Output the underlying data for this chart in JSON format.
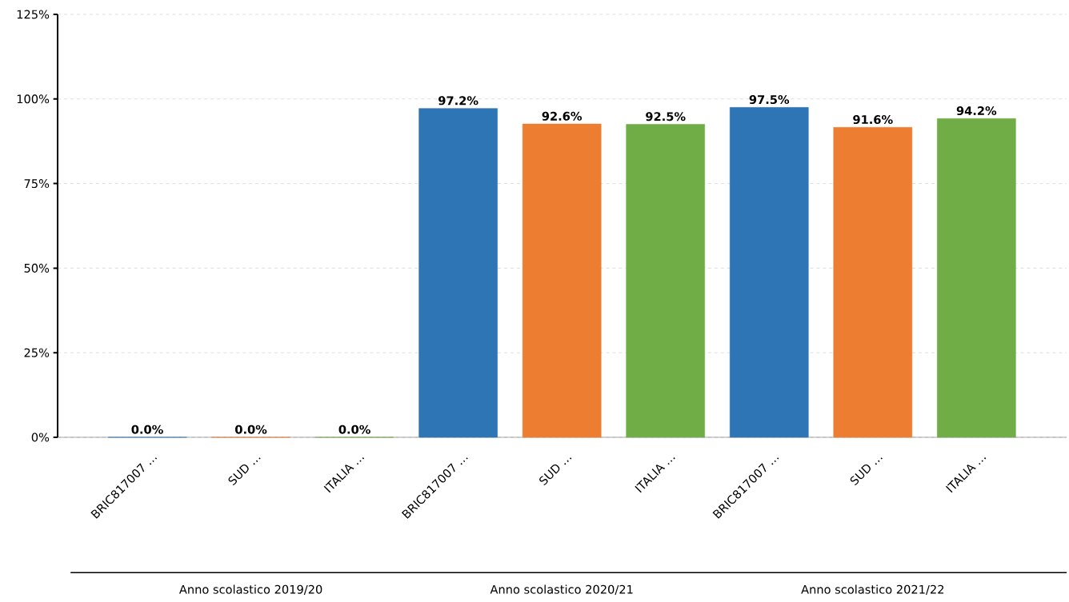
{
  "chart_data": {
    "type": "bar",
    "categories": [
      "BRIC817007 …",
      "SUD …",
      "ITALIA …",
      "BRIC817007 …",
      "SUD …",
      "ITALIA …",
      "BRIC817007 …",
      "SUD …",
      "ITALIA …"
    ],
    "values": [
      0,
      0,
      0,
      97.2,
      92.6,
      92.5,
      97.5,
      91.6,
      94.2
    ],
    "value_labels": [
      "0.0%",
      "0.0%",
      "0.0%",
      "97.2%",
      "92.6%",
      "92.5%",
      "97.5%",
      "91.6%",
      "94.2%"
    ],
    "colors": [
      "#2e75b6",
      "#ed7d31",
      "#70ad47",
      "#2e75b6",
      "#ed7d31",
      "#70ad47",
      "#2e75b6",
      "#ed7d31",
      "#70ad47"
    ],
    "ylim": [
      0,
      125
    ],
    "yticks": [
      {
        "value": 0,
        "label": "0%"
      },
      {
        "value": 25,
        "label": "25%"
      },
      {
        "value": 50,
        "label": "50%"
      },
      {
        "value": 75,
        "label": "75%"
      },
      {
        "value": 100,
        "label": "100%"
      },
      {
        "value": 125,
        "label": "125%"
      }
    ],
    "grid": "y",
    "annotations": [
      "Anno scolastico 2019/20",
      "Anno scolastico 2020/21",
      "Anno scolastico 2021/22"
    ]
  }
}
